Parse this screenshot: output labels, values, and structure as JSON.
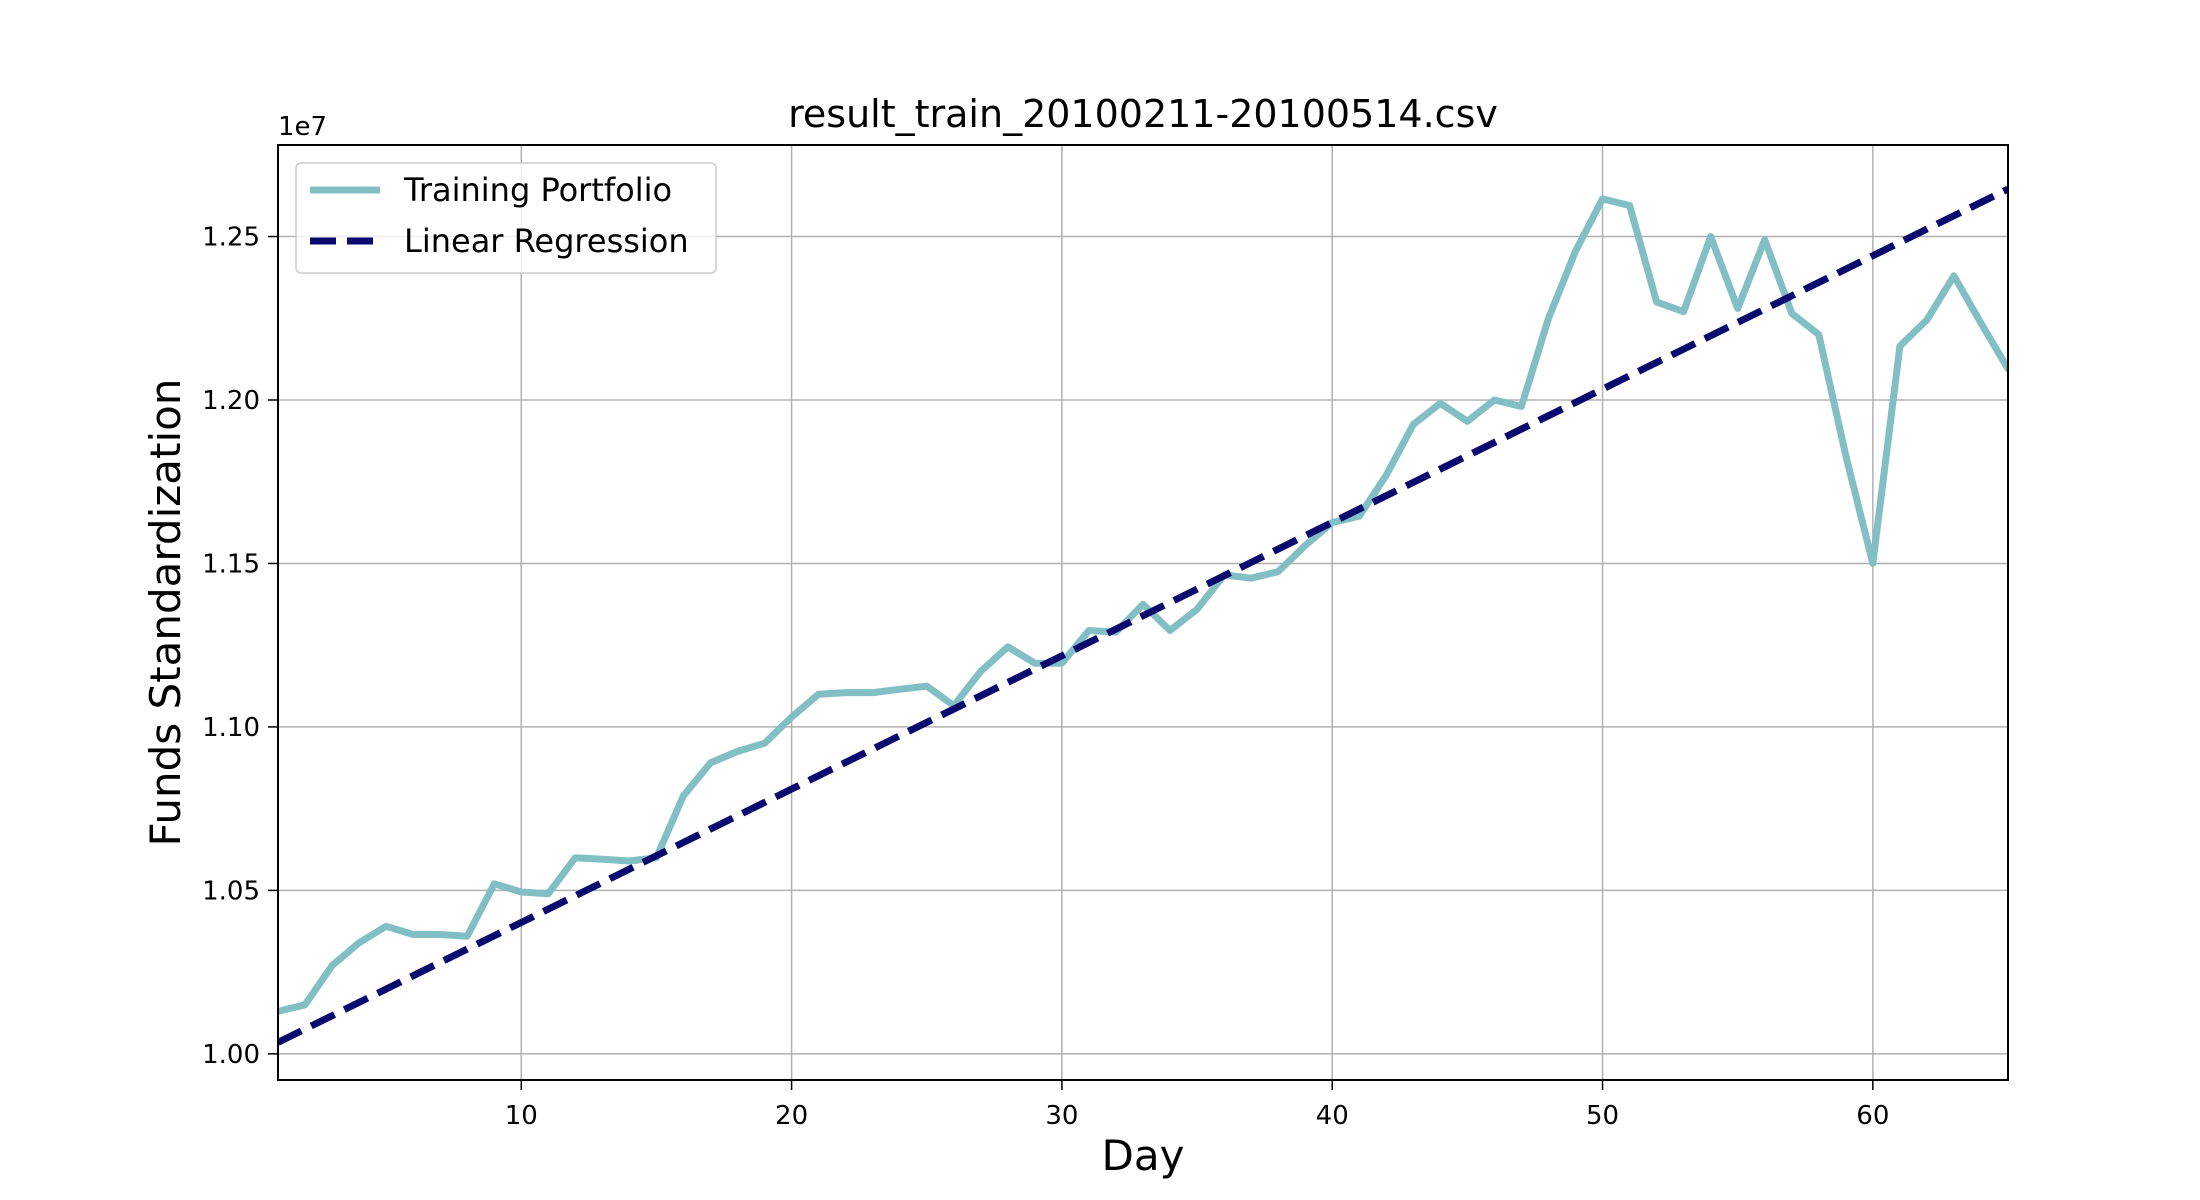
{
  "chart_data": {
    "type": "line",
    "title": "result_train_20100211-20100514.csv",
    "xlabel": "Day",
    "ylabel": "Funds Standardization",
    "y_offset_label": "1e7",
    "xlim": [
      1,
      65
    ],
    "ylim": [
      0.992,
      1.278
    ],
    "x_ticks": [
      10,
      20,
      30,
      40,
      50,
      60
    ],
    "y_ticks": [
      1.0,
      1.05,
      1.1,
      1.15,
      1.2,
      1.25
    ],
    "y_tick_labels": [
      "1.00",
      "1.05",
      "1.10",
      "1.15",
      "1.20",
      "1.25"
    ],
    "grid": true,
    "legend_position": "top-left",
    "series": [
      {
        "name": "Training Portfolio",
        "style": "solid",
        "color": "#82bfc4",
        "x": [
          1,
          2,
          3,
          4,
          5,
          6,
          7,
          8,
          9,
          10,
          11,
          12,
          13,
          14,
          15,
          16,
          17,
          18,
          19,
          20,
          21,
          22,
          23,
          24,
          25,
          26,
          27,
          28,
          29,
          30,
          31,
          32,
          33,
          34,
          35,
          36,
          37,
          38,
          39,
          40,
          41,
          42,
          43,
          44,
          45,
          46,
          47,
          48,
          49,
          50,
          51,
          52,
          53,
          54,
          55,
          56,
          57,
          58,
          59,
          60,
          61,
          62,
          63,
          64,
          65
        ],
        "values": [
          1.013,
          1.015,
          1.027,
          1.034,
          1.039,
          1.0365,
          1.0365,
          1.036,
          1.052,
          1.0495,
          1.049,
          1.06,
          1.0595,
          1.059,
          1.06,
          1.079,
          1.089,
          1.0925,
          1.095,
          1.103,
          1.11,
          1.1105,
          1.1105,
          1.1115,
          1.1125,
          1.1065,
          1.117,
          1.1245,
          1.1195,
          1.1195,
          1.1295,
          1.129,
          1.1375,
          1.1295,
          1.136,
          1.1465,
          1.1455,
          1.1475,
          1.1555,
          1.1625,
          1.1645,
          1.177,
          1.1925,
          1.199,
          1.1935,
          1.2,
          1.198,
          1.225,
          1.2455,
          1.2615,
          1.2595,
          1.23,
          1.227,
          1.25,
          1.228,
          1.249,
          1.2265,
          1.22,
          1.183,
          1.15,
          1.2165,
          1.2245,
          1.238,
          1.2235,
          1.2095
        ]
      },
      {
        "name": "Linear Regression",
        "style": "dashed",
        "color": "#0a0a6e",
        "x": [
          1,
          65
        ],
        "values": [
          1.0035,
          1.2645
        ]
      }
    ]
  }
}
